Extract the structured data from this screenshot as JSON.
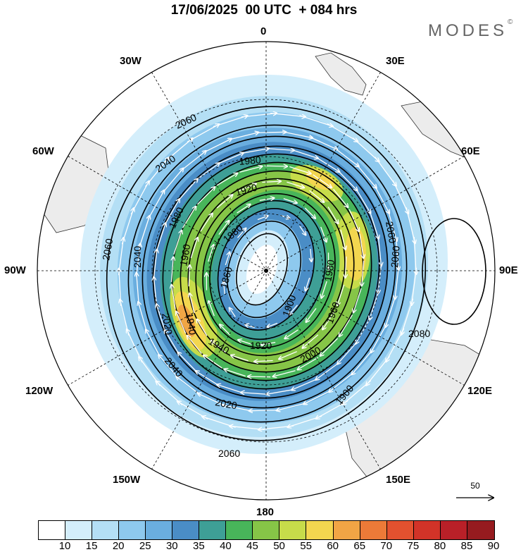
{
  "title": "17/06/2025  00 UTC  + 084 hrs",
  "brand": "MODES",
  "brand_mark": "©",
  "longitude_labels": {
    "lon_0": "0",
    "lon_30e": "30E",
    "lon_60e": "60E",
    "lon_90e": "90E",
    "lon_120e": "120E",
    "lon_150e": "150E",
    "lon_180": "180",
    "lon_150w": "150W",
    "lon_120w": "120W",
    "lon_90w": "90W",
    "lon_60w": "60W",
    "lon_30w": "30W"
  },
  "contour_labels": [
    "2060",
    "2040",
    "1980",
    "1920",
    "1980",
    "1880",
    "1860",
    "1960",
    "2040",
    "2060",
    "2020",
    "1940",
    "1940",
    "1920",
    "1900",
    "1960",
    "1980",
    "2000",
    "2040",
    "2020",
    "2060",
    "2060",
    "2060",
    "2080",
    "1900"
  ],
  "vector_scale": {
    "label": "50"
  },
  "colorbar": {
    "ticks": [
      "10",
      "15",
      "20",
      "25",
      "30",
      "35",
      "40",
      "45",
      "50",
      "55",
      "60",
      "65",
      "70",
      "75",
      "80",
      "85",
      "90"
    ],
    "colors": [
      "#ffffff",
      "#d4eefb",
      "#b4dff5",
      "#8ec9ee",
      "#6aaedf",
      "#4a8dc6",
      "#3e9f96",
      "#48b55a",
      "#86c547",
      "#c7dc4a",
      "#f3d64f",
      "#f1a545",
      "#ec7a38",
      "#e2512f",
      "#d23328",
      "#b92028",
      "#961b1f"
    ]
  }
}
